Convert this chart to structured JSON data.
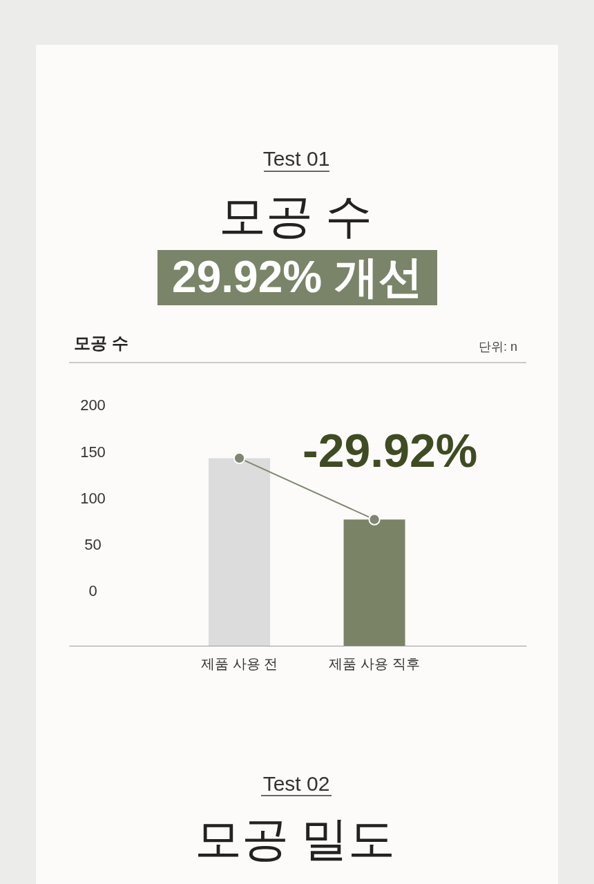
{
  "chart_data": {
    "type": "bar",
    "title": "모공 수",
    "subtitle": "29.92% 개선",
    "ylabel": "단위: n",
    "categories": [
      "제품 사용 전",
      "제품 사용 직후"
    ],
    "series": [
      {
        "base": [
          -59,
          -59
        ],
        "values": [
          202,
          136
        ],
        "colors": [
          "#dcdcdc",
          "#7a8366"
        ]
      },
      {
        "type": "line",
        "color": "#7f8672",
        "values": [
          143,
          77
        ],
        "marker": "circle",
        "line_style": "solid"
      }
    ],
    "ylim": [
      -59,
      246
    ],
    "yticks": [
      0,
      50,
      100,
      150,
      200
    ],
    "grid": false,
    "annotations": [
      "Test 01",
      "모공 수",
      "-29.92%",
      "Test 02",
      "모공 밀도"
    ]
  }
}
